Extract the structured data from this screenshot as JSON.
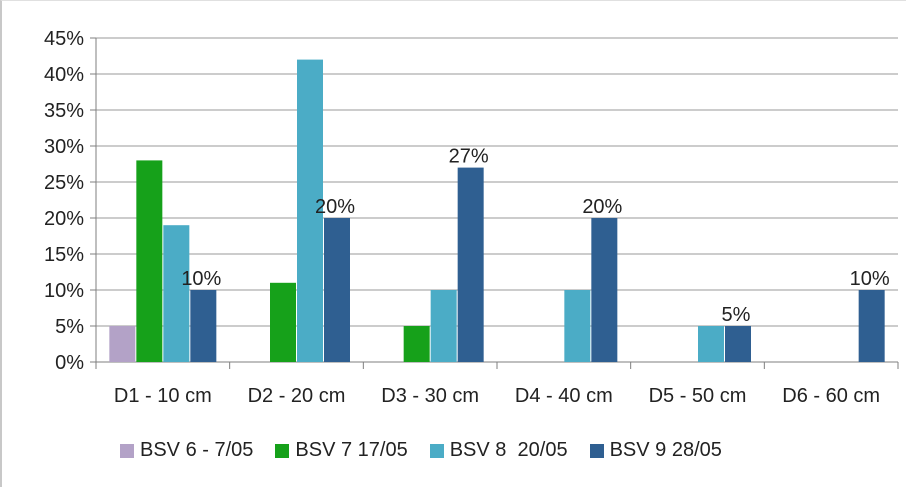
{
  "chart_data": {
    "type": "bar",
    "categories": [
      "D1 - 10 cm",
      "D2 - 20 cm",
      "D3 - 30 cm",
      "D4 - 40 cm",
      "D5 - 50 cm",
      "D6 - 60 cm"
    ],
    "series": [
      {
        "name": "BSV 6 - 7/05",
        "color": "#b3a2c7",
        "values": [
          5,
          0,
          0,
          0,
          0,
          0
        ]
      },
      {
        "name": "BSV 7 17/05",
        "color": "#16a11a",
        "values": [
          28,
          11,
          5,
          0,
          0,
          0
        ]
      },
      {
        "name": "BSV 8  20/05",
        "color": "#4bacc6",
        "values": [
          19,
          42,
          10,
          10,
          5,
          0
        ]
      },
      {
        "name": "BSV 9 28/05",
        "color": "#2f5f91",
        "values": [
          10,
          20,
          27,
          20,
          5,
          10
        ]
      }
    ],
    "data_labels": [
      {
        "series": 3,
        "category": 0,
        "text": "10%"
      },
      {
        "series": 3,
        "category": 1,
        "text": "20%"
      },
      {
        "series": 3,
        "category": 2,
        "text": "27%"
      },
      {
        "series": 3,
        "category": 3,
        "text": "20%"
      },
      {
        "series": 3,
        "category": 4,
        "text": "5%"
      },
      {
        "series": 3,
        "category": 5,
        "text": "10%"
      }
    ],
    "y_ticks": [
      "0%",
      "5%",
      "10%",
      "15%",
      "20%",
      "25%",
      "30%",
      "35%",
      "40%",
      "45%"
    ],
    "ylim": [
      0,
      45
    ],
    "grid": true,
    "legend_position": "bottom",
    "title": "",
    "xlabel": "",
    "ylabel": ""
  }
}
